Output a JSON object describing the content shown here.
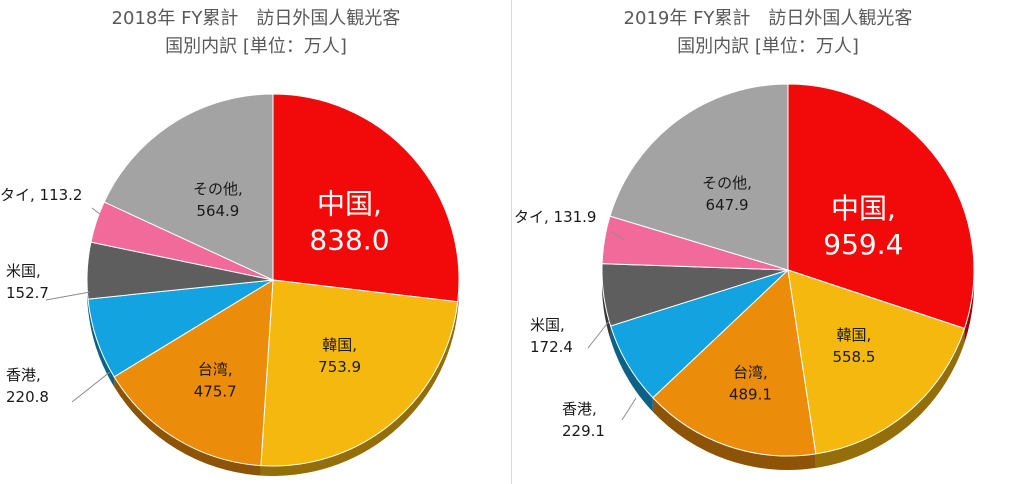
{
  "chart_data": [
    {
      "type": "pie",
      "title_line1": "2018年 FY累計　訪日外国人観光客",
      "title_line2": "国別内訳 [単位：万人]",
      "series": [
        {
          "name": "中国",
          "label": "中国,",
          "value": 838.0,
          "value_text": "838.0",
          "color": "#f20a0a"
        },
        {
          "name": "韓国",
          "label": "韓国,",
          "value": 753.9,
          "value_text": "753.9",
          "color": "#f5b80f"
        },
        {
          "name": "台湾",
          "label": "台湾,",
          "value": 475.7,
          "value_text": "475.7",
          "color": "#eb8c0b"
        },
        {
          "name": "香港",
          "label": "香港,",
          "value": 220.8,
          "value_text": "220.8",
          "color": "#12a3e0"
        },
        {
          "name": "米国",
          "label": "米国,",
          "value": 152.7,
          "value_text": "152.7",
          "color": "#5e5e5e"
        },
        {
          "name": "タイ",
          "label": "タイ,",
          "value": 113.2,
          "value_text": "113.2",
          "color": "#f26a9a"
        },
        {
          "name": "その他",
          "label": "その他,",
          "value": 564.9,
          "value_text": "564.9",
          "color": "#a3a3a3"
        }
      ]
    },
    {
      "type": "pie",
      "title_line1": "2019年 FY累計　訪日外国人観光客",
      "title_line2": "国別内訳 [単位：万人]",
      "series": [
        {
          "name": "中国",
          "label": "中国,",
          "value": 959.4,
          "value_text": "959.4",
          "color": "#f20a0a"
        },
        {
          "name": "韓国",
          "label": "韓国,",
          "value": 558.5,
          "value_text": "558.5",
          "color": "#f5b80f"
        },
        {
          "name": "台湾",
          "label": "台湾,",
          "value": 489.1,
          "value_text": "489.1",
          "color": "#eb8c0b"
        },
        {
          "name": "香港",
          "label": "香港,",
          "value": 229.1,
          "value_text": "229.1",
          "color": "#12a3e0"
        },
        {
          "name": "米国",
          "label": "米国,",
          "value": 172.4,
          "value_text": "172.4",
          "color": "#5e5e5e"
        },
        {
          "name": "タイ",
          "label": "タイ,",
          "value": 131.9,
          "value_text": "131.9",
          "color": "#f26a9a"
        },
        {
          "name": "その他",
          "label": "その他,",
          "value": 647.9,
          "value_text": "647.9",
          "color": "#a3a3a3"
        }
      ]
    }
  ]
}
